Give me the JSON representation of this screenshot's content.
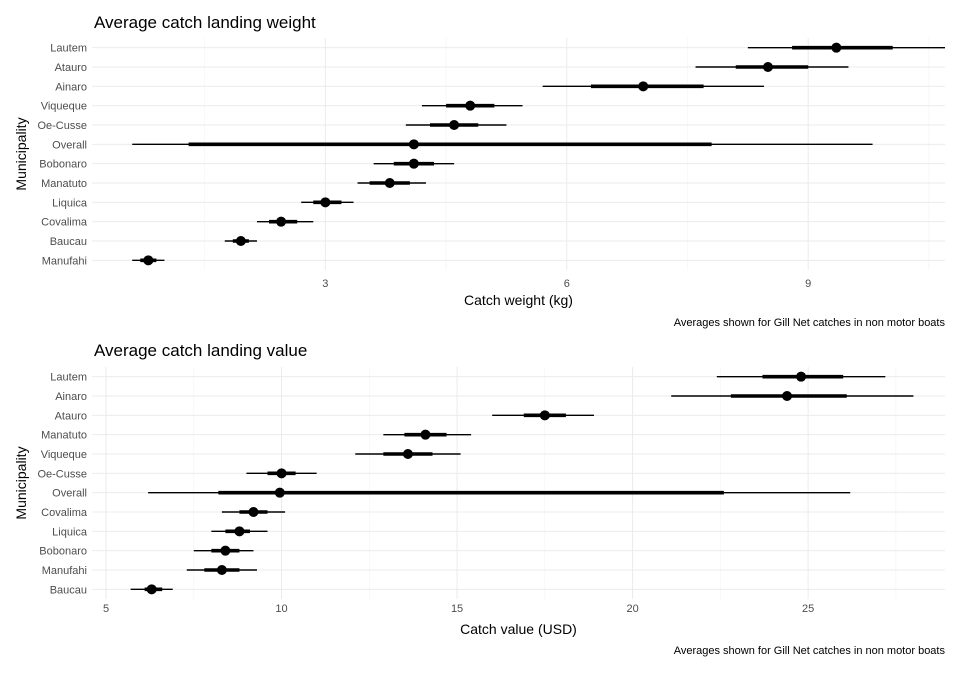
{
  "chart_data": [
    {
      "type": "pointrange",
      "title": "Average catch landing weight",
      "xlabel": "Catch weight (kg)",
      "ylabel": "Municipality",
      "caption": "Averages shown for Gill Net catches in non motor boats",
      "xlim": [
        0.1,
        10.7
      ],
      "xticks": [
        3,
        6,
        9
      ],
      "categories": [
        "Lautem",
        "Atauro",
        "Ainaro",
        "Viqueque",
        "Oe-Cusse",
        "Overall",
        "Bobonaro",
        "Manatuto",
        "Liquica",
        "Covalima",
        "Baucau",
        "Manufahi"
      ],
      "series": [
        {
          "label": "Lautem",
          "estimate": 9.35,
          "inner": [
            8.8,
            10.05
          ],
          "outer": [
            8.25,
            10.7
          ]
        },
        {
          "label": "Atauro",
          "estimate": 8.5,
          "inner": [
            8.1,
            9.0
          ],
          "outer": [
            7.6,
            9.5
          ]
        },
        {
          "label": "Ainaro",
          "estimate": 6.95,
          "inner": [
            6.3,
            7.7
          ],
          "outer": [
            5.7,
            8.45
          ]
        },
        {
          "label": "Viqueque",
          "estimate": 4.8,
          "inner": [
            4.5,
            5.1
          ],
          "outer": [
            4.2,
            5.45
          ]
        },
        {
          "label": "Oe-Cusse",
          "estimate": 4.6,
          "inner": [
            4.3,
            4.9
          ],
          "outer": [
            4.0,
            5.25
          ]
        },
        {
          "label": "Overall",
          "estimate": 4.1,
          "inner": [
            1.3,
            7.8
          ],
          "outer": [
            0.6,
            9.8
          ]
        },
        {
          "label": "Bobonaro",
          "estimate": 4.1,
          "inner": [
            3.85,
            4.35
          ],
          "outer": [
            3.6,
            4.6
          ]
        },
        {
          "label": "Manatuto",
          "estimate": 3.8,
          "inner": [
            3.55,
            4.05
          ],
          "outer": [
            3.4,
            4.25
          ]
        },
        {
          "label": "Liquica",
          "estimate": 3.0,
          "inner": [
            2.85,
            3.2
          ],
          "outer": [
            2.7,
            3.35
          ]
        },
        {
          "label": "Covalima",
          "estimate": 2.45,
          "inner": [
            2.3,
            2.65
          ],
          "outer": [
            2.15,
            2.85
          ]
        },
        {
          "label": "Baucau",
          "estimate": 1.95,
          "inner": [
            1.85,
            2.05
          ],
          "outer": [
            1.75,
            2.15
          ]
        },
        {
          "label": "Manufahi",
          "estimate": 0.8,
          "inner": [
            0.7,
            0.9
          ],
          "outer": [
            0.6,
            1.0
          ]
        }
      ]
    },
    {
      "type": "pointrange",
      "title": "Average catch landing value",
      "xlabel": "Catch value (USD)",
      "ylabel": "Municipality",
      "caption": "Averages shown for Gill Net catches in non motor boats",
      "xlim": [
        4.6,
        28.9
      ],
      "xticks": [
        5,
        10,
        15,
        20,
        25
      ],
      "categories": [
        "Lautem",
        "Ainaro",
        "Atauro",
        "Manatuto",
        "Viqueque",
        "Oe-Cusse",
        "Overall",
        "Covalima",
        "Liquica",
        "Bobonaro",
        "Manufahi",
        "Baucau"
      ],
      "series": [
        {
          "label": "Lautem",
          "estimate": 24.8,
          "inner": [
            23.7,
            26.0
          ],
          "outer": [
            22.4,
            27.2
          ]
        },
        {
          "label": "Ainaro",
          "estimate": 24.4,
          "inner": [
            22.8,
            26.1
          ],
          "outer": [
            21.1,
            28.0
          ]
        },
        {
          "label": "Atauro",
          "estimate": 17.5,
          "inner": [
            16.9,
            18.1
          ],
          "outer": [
            16.0,
            18.9
          ]
        },
        {
          "label": "Manatuto",
          "estimate": 14.1,
          "inner": [
            13.5,
            14.7
          ],
          "outer": [
            12.9,
            15.4
          ]
        },
        {
          "label": "Viqueque",
          "estimate": 13.6,
          "inner": [
            12.9,
            14.3
          ],
          "outer": [
            12.1,
            15.1
          ]
        },
        {
          "label": "Oe-Cusse",
          "estimate": 10.0,
          "inner": [
            9.6,
            10.4
          ],
          "outer": [
            9.0,
            11.0
          ]
        },
        {
          "label": "Overall",
          "estimate": 9.95,
          "inner": [
            8.2,
            22.6
          ],
          "outer": [
            6.2,
            26.2
          ]
        },
        {
          "label": "Covalima",
          "estimate": 9.2,
          "inner": [
            8.8,
            9.6
          ],
          "outer": [
            8.3,
            10.1
          ]
        },
        {
          "label": "Liquica",
          "estimate": 8.8,
          "inner": [
            8.4,
            9.1
          ],
          "outer": [
            8.0,
            9.6
          ]
        },
        {
          "label": "Bobonaro",
          "estimate": 8.4,
          "inner": [
            8.0,
            8.8
          ],
          "outer": [
            7.5,
            9.2
          ]
        },
        {
          "label": "Manufahi",
          "estimate": 8.3,
          "inner": [
            7.8,
            8.8
          ],
          "outer": [
            7.3,
            9.3
          ]
        },
        {
          "label": "Baucau",
          "estimate": 6.3,
          "inner": [
            6.1,
            6.6
          ],
          "outer": [
            5.7,
            6.9
          ]
        }
      ]
    }
  ]
}
